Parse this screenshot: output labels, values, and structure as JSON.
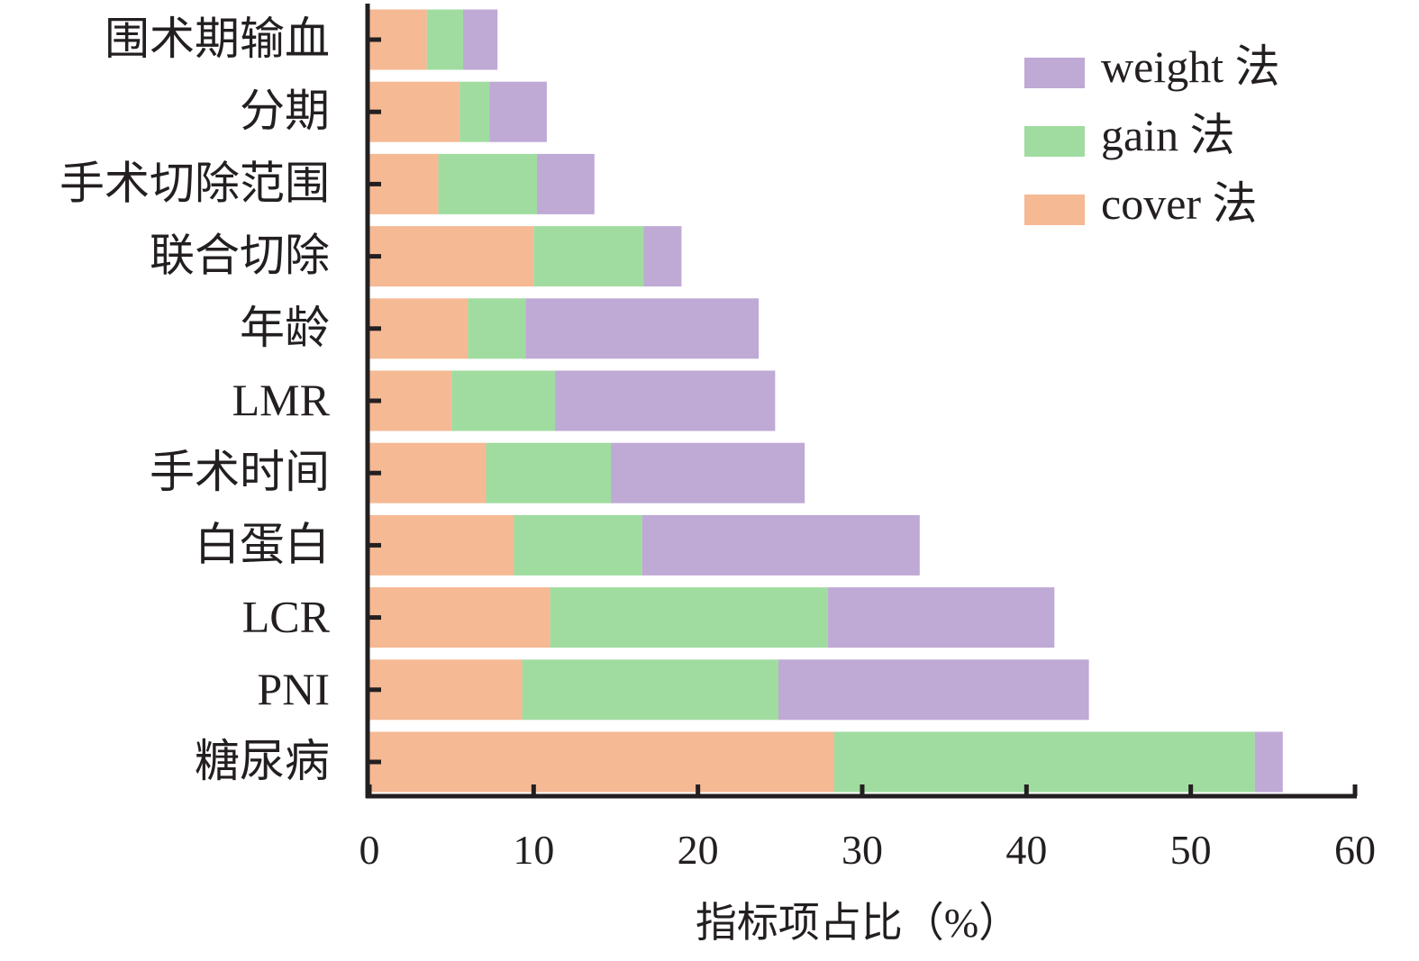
{
  "chart_data": {
    "type": "bar",
    "stacked": true,
    "orientation": "horizontal",
    "title": "",
    "xlabel": "指标项占比（%）",
    "ylabel": "",
    "xlim": [
      0,
      60
    ],
    "xticks": [
      0,
      10,
      20,
      30,
      40,
      50,
      60
    ],
    "grid": false,
    "legend_position": "top-right",
    "categories": [
      "围术期输血",
      "分期",
      "手术切除范围",
      "联合切除",
      "年龄",
      "LMR",
      "手术时间",
      "白蛋白",
      "LCR",
      "PNI",
      "糖尿病"
    ],
    "series": [
      {
        "name": "cover 法",
        "color": "#f5b994",
        "values": [
          3.5,
          5.5,
          4.2,
          10.0,
          6.0,
          5.0,
          7.1,
          8.8,
          11.0,
          9.3,
          28.3
        ]
      },
      {
        "name": "gain 法",
        "color": "#a0dca0",
        "values": [
          2.2,
          1.8,
          6.0,
          6.7,
          3.5,
          6.3,
          7.6,
          7.8,
          16.9,
          15.6,
          25.6
        ]
      },
      {
        "name": "weight 法",
        "color": "#bfa9d5",
        "values": [
          2.1,
          3.5,
          3.5,
          2.3,
          14.2,
          13.4,
          11.8,
          16.9,
          13.8,
          18.9,
          1.7
        ]
      }
    ],
    "legend_order": [
      "weight 法",
      "gain 法",
      "cover 法"
    ]
  }
}
